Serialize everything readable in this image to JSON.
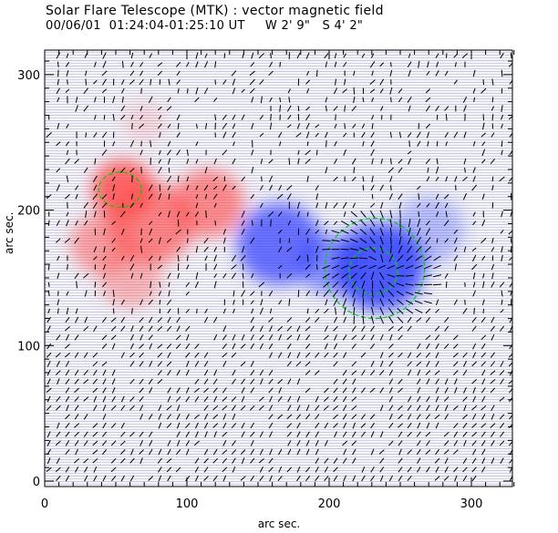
{
  "chart_data": {
    "type": "heatmap",
    "subtype": "vector-magnetic-field-map",
    "title": "Solar Flare Telescope (MTK) : vector magnetic field",
    "subtitle": "00/06/01  01:24:04-01:25:10 UT     W 2' 9\"   S 4' 2\"",
    "xlabel": "arc sec.",
    "ylabel": "arc sec.",
    "xlim": [
      0,
      330
    ],
    "ylim": [
      -4,
      322
    ],
    "xticks": [
      0,
      100,
      200,
      300
    ],
    "yticks": [
      0,
      100,
      200,
      300
    ],
    "minor_tick_step": 10,
    "colors": {
      "positive": "#ff5050",
      "negative": "#3040ff",
      "contour": "#00d000",
      "vectors": "#000000"
    },
    "polarity_regions": [
      {
        "polarity": "positive",
        "x": 55,
        "y": 215,
        "r": 22,
        "strength": 1.0
      },
      {
        "polarity": "positive",
        "x": 75,
        "y": 190,
        "r": 30,
        "strength": 0.8
      },
      {
        "polarity": "positive",
        "x": 115,
        "y": 205,
        "r": 25,
        "strength": 0.75
      },
      {
        "polarity": "positive",
        "x": 40,
        "y": 175,
        "r": 22,
        "strength": 0.6
      },
      {
        "polarity": "positive",
        "x": 60,
        "y": 150,
        "r": 22,
        "strength": 0.45
      },
      {
        "polarity": "positive",
        "x": 70,
        "y": 265,
        "r": 15,
        "strength": 0.2
      },
      {
        "polarity": "negative",
        "x": 165,
        "y": 175,
        "r": 30,
        "strength": 0.85
      },
      {
        "polarity": "negative",
        "x": 235,
        "y": 158,
        "r": 32,
        "strength": 1.0
      },
      {
        "polarity": "negative",
        "x": 270,
        "y": 185,
        "r": 25,
        "strength": 0.35
      },
      {
        "polarity": "negative",
        "x": 200,
        "y": 160,
        "r": 22,
        "strength": 0.6
      }
    ],
    "contours": [
      {
        "x": 53,
        "y": 215,
        "rx": 15,
        "ry": 13
      },
      {
        "x": 232,
        "y": 157,
        "rx": 35,
        "ry": 37
      },
      {
        "x": 231,
        "y": 155,
        "rx": 17,
        "ry": 17
      }
    ],
    "vector_field": {
      "grid_step": 6.5,
      "sink": {
        "x": 236,
        "y": 158,
        "r": 40
      },
      "default_angle_deg": 55
    }
  }
}
